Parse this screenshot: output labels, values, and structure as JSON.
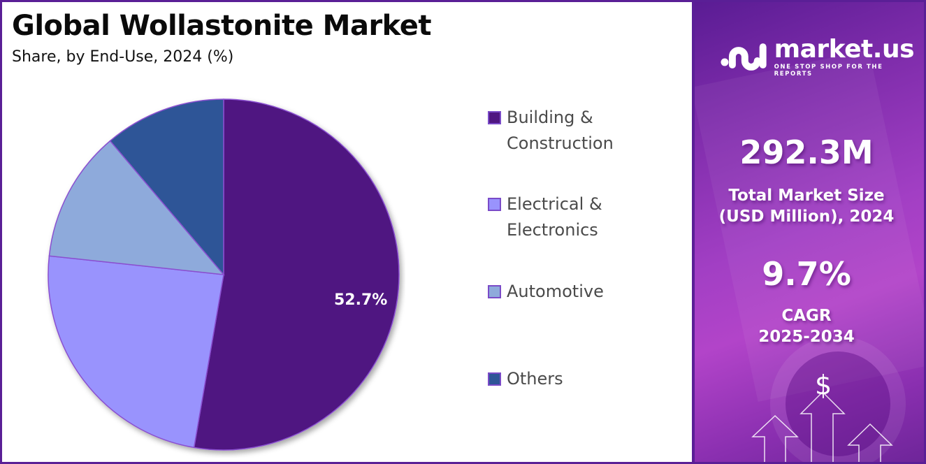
{
  "header": {
    "title": "Global Wollastonite Market",
    "subtitle": "Share, by End-Use, 2024 (%)"
  },
  "chart_data": {
    "type": "pie",
    "title": "Global Wollastonite Market",
    "subtitle": "Share, by End-Use, 2024 (%)",
    "categories": [
      "Building & Construction",
      "Electrical & Electronics",
      "Automotive",
      "Others"
    ],
    "values": [
      52.7,
      24.0,
      12.1,
      11.2
    ],
    "colors": [
      "#4f1681",
      "#9993fd",
      "#8eaadb",
      "#2f5597"
    ],
    "data_labels": [
      "52.7%",
      "",
      "",
      ""
    ],
    "start_angle": 0,
    "direction": "clockwise",
    "legend_position": "right"
  },
  "pie": {
    "highlight_label": "52.7%"
  },
  "legend": {
    "items": [
      {
        "line1": "Building &",
        "line2": "Construction",
        "color": "#4f1681"
      },
      {
        "line1": "Electrical &",
        "line2": "Electronics",
        "color": "#9993fd"
      },
      {
        "line1": "Automotive",
        "line2": "",
        "color": "#8eaadb"
      },
      {
        "line1": "Others",
        "line2": "",
        "color": "#2f5597"
      }
    ]
  },
  "sidebar": {
    "brand": "market.us",
    "tagline": "ONE STOP SHOP FOR THE REPORTS",
    "market_size_value": "292.3M",
    "market_size_label_1": "Total Market Size",
    "market_size_label_2": "(USD Million), 2024",
    "cagr_value": "9.7%",
    "cagr_label_1": "CAGR",
    "cagr_label_2": "2025-2034",
    "dollar_icon": "$"
  }
}
